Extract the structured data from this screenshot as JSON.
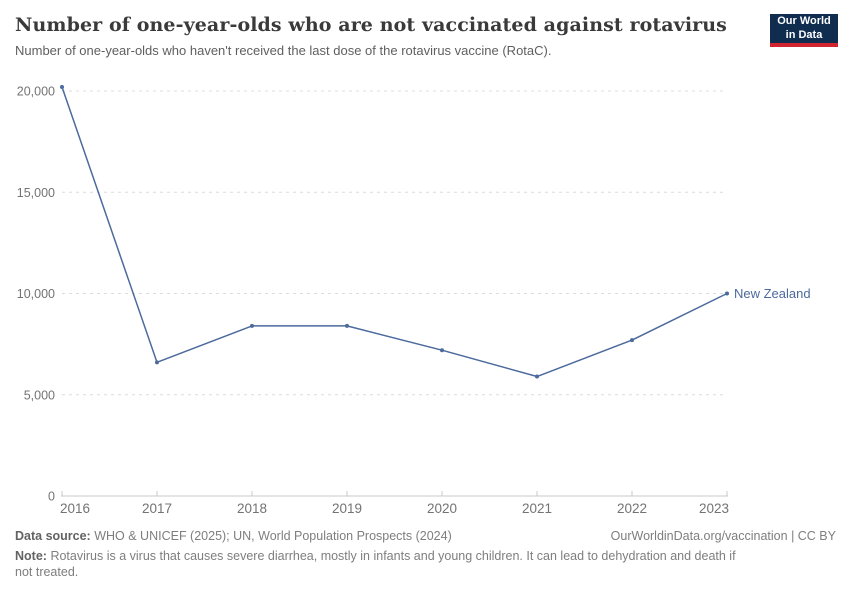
{
  "header": {
    "title": "Number of one-year-olds who are not vaccinated against rotavirus",
    "subtitle": "Number of one-year-olds who haven't received the last dose of the rotavirus vaccine (RotaC).",
    "logo": {
      "line1": "Our World",
      "line2": "in Data"
    }
  },
  "chart_data": {
    "type": "line",
    "title": "Number of one-year-olds who are not vaccinated against rotavirus",
    "x": [
      2016,
      2017,
      2018,
      2019,
      2020,
      2021,
      2022,
      2023
    ],
    "series": [
      {
        "name": "New Zealand",
        "values": [
          20200,
          6600,
          8400,
          8400,
          7200,
          5900,
          7700,
          10000
        ],
        "color": "#4c6a9c"
      }
    ],
    "xlabel": "",
    "ylabel": "",
    "ylim": [
      0,
      20000
    ],
    "yticks": [
      {
        "value": 0,
        "label": "0"
      },
      {
        "value": 5000,
        "label": "5,000"
      },
      {
        "value": 10000,
        "label": "10,000"
      },
      {
        "value": 15000,
        "label": "15,000"
      },
      {
        "value": 20000,
        "label": "20,000"
      }
    ],
    "grid": "horizontal-dashed",
    "legend_position": "entity-label-at-line-end",
    "entity_label": "New Zealand"
  },
  "footer": {
    "datasource_label": "Data source:",
    "datasource_text": "WHO & UNICEF (2025); UN, World Population Prospects (2024)",
    "rights": "OurWorldinData.org/vaccination | CC BY",
    "note_label": "Note:",
    "note_text": "Rotavirus is a virus that causes severe diarrhea, mostly in infants and young children. It can lead to dehydration and death if not treated."
  },
  "colors": {
    "line": "#4c6a9c",
    "logo_navy": "#102d50",
    "logo_red": "#d0242f",
    "grid": "#dcdcdc",
    "axis": "#c8c8c8",
    "tick_text": "#737373",
    "title_text": "#3a3a3a"
  }
}
